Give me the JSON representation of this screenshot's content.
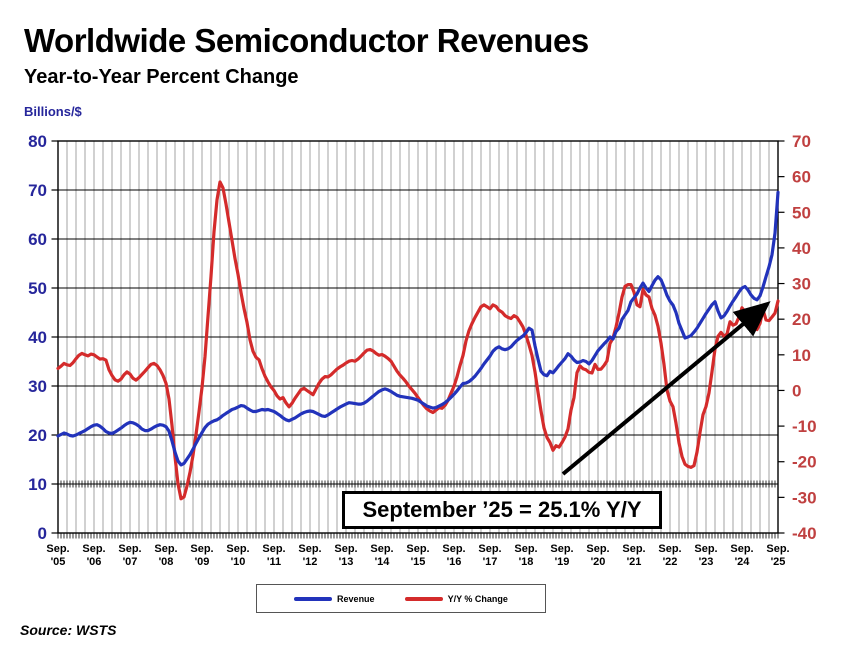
{
  "header": {
    "title": "Worldwide Semiconductor Revenues",
    "subtitle": "Year-to-Year Percent Change"
  },
  "source_label": "Source: WSTS",
  "annotation": {
    "text": "September ’25 = 25.1% Y/Y"
  },
  "legend": {
    "items": [
      {
        "label": "Revenue",
        "color": "#2233BB"
      },
      {
        "label": "Y/Y % Change",
        "color": "#D42B2B"
      }
    ]
  },
  "colors": {
    "revenue_line": "#2233BB",
    "yoy_line": "#D42B2B",
    "left_axis_text": "#26269B",
    "right_axis_text": "#C04040",
    "x_axis_text": "#000000",
    "grid_vertical": "#A3A3A3",
    "grid_horizontal": "#000000",
    "arrow": "#000000"
  },
  "chart_data": {
    "type": "line",
    "title": "Worldwide Semiconductor Revenues",
    "subtitle": "Year-to-Year Percent Change",
    "x_frequency": "monthly",
    "x_start": "Sep 2005",
    "x_end": "Sep 2025",
    "x_tick_month": "Sep.",
    "x_tick_years": [
      "'05",
      "'06",
      "'07",
      "'08",
      "'09",
      "'10",
      "'11",
      "'12",
      "'13",
      "'14",
      "'15",
      "'16",
      "'17",
      "'18",
      "'19",
      "'20",
      "'21",
      "'22",
      "'23",
      "'24",
      "'25"
    ],
    "axes": {
      "left": {
        "title": "Billions/$",
        "min": 0,
        "max": 80,
        "tick_step": 10
      },
      "right": {
        "title": "Y/Y % Change",
        "min": -40,
        "max": 70,
        "tick_step": 10
      }
    },
    "grid": {
      "vertical": "quarterly",
      "horizontal": "every 10 on left axis"
    },
    "legend_position": "bottom-center",
    "annotation": "September ’25 = 25.1% Y/Y",
    "series": [
      {
        "name": "Revenue",
        "axis": "left",
        "color": "#2233BB",
        "values": [
          19.8,
          20.1,
          20.4,
          20.2,
          19.9,
          19.8,
          20.0,
          20.3,
          20.6,
          20.9,
          21.3,
          21.7,
          22.0,
          22.1,
          21.8,
          21.3,
          20.7,
          20.4,
          20.3,
          20.6,
          21.0,
          21.4,
          21.9,
          22.3,
          22.6,
          22.5,
          22.2,
          21.8,
          21.2,
          20.9,
          20.9,
          21.2,
          21.6,
          21.9,
          22.1,
          22.0,
          21.7,
          20.8,
          18.8,
          16.5,
          14.7,
          13.9,
          14.2,
          15.1,
          16.0,
          17.1,
          18.3,
          19.4,
          20.5,
          21.5,
          22.2,
          22.6,
          22.9,
          23.1,
          23.5,
          24.0,
          24.4,
          24.8,
          25.2,
          25.4,
          25.7,
          26.0,
          25.9,
          25.5,
          25.1,
          24.8,
          24.8,
          25.0,
          25.2,
          25.1,
          25.2,
          25.0,
          24.8,
          24.4,
          24.0,
          23.5,
          23.1,
          22.9,
          23.2,
          23.5,
          23.9,
          24.3,
          24.6,
          24.8,
          24.9,
          24.8,
          24.5,
          24.2,
          23.9,
          23.8,
          24.1,
          24.5,
          24.9,
          25.3,
          25.7,
          26.0,
          26.3,
          26.6,
          26.5,
          26.4,
          26.3,
          26.3,
          26.5,
          26.9,
          27.4,
          27.9,
          28.4,
          28.9,
          29.2,
          29.4,
          29.2,
          28.9,
          28.5,
          28.1,
          27.9,
          27.8,
          27.7,
          27.6,
          27.5,
          27.3,
          27.1,
          26.7,
          26.3,
          25.9,
          25.7,
          25.5,
          25.6,
          25.9,
          26.2,
          26.6,
          27.1,
          27.7,
          28.3,
          29.0,
          29.8,
          30.5,
          30.6,
          30.9,
          31.4,
          32.0,
          32.8,
          33.6,
          34.5,
          35.3,
          36.1,
          37.1,
          37.7,
          38.0,
          37.6,
          37.4,
          37.6,
          38.0,
          38.7,
          39.3,
          39.8,
          40.2,
          40.9,
          41.8,
          41.4,
          38.2,
          35.5,
          33.0,
          32.3,
          32.1,
          33.0,
          32.7,
          33.4,
          34.2,
          34.9,
          35.6,
          36.6,
          36.1,
          35.3,
          34.8,
          34.9,
          35.2,
          35.0,
          34.5,
          35.2,
          36.2,
          37.2,
          37.9,
          38.6,
          39.2,
          40.0,
          39.6,
          41.1,
          41.8,
          43.6,
          44.5,
          45.4,
          47.2,
          48.0,
          48.8,
          50.0,
          51.0,
          50.0,
          49.3,
          50.5,
          51.6,
          52.3,
          51.7,
          50.2,
          48.5,
          47.3,
          46.5,
          45.0,
          42.8,
          41.3,
          39.8,
          40.0,
          40.3,
          41.0,
          41.8,
          42.8,
          43.8,
          44.8,
          45.7,
          46.6,
          47.2,
          45.3,
          43.9,
          44.3,
          45.2,
          46.3,
          47.3,
          48.2,
          49.2,
          50.0,
          50.3,
          49.6,
          48.6,
          47.9,
          47.6,
          48.4,
          50.2,
          52.3,
          54.3,
          56.8,
          61.2,
          69.5
        ]
      },
      {
        "name": "Y/Y % Change",
        "axis": "right",
        "color": "#D42B2B",
        "values": [
          6.2,
          6.8,
          7.6,
          7.2,
          7.0,
          7.8,
          8.9,
          9.9,
          10.4,
          10.0,
          9.7,
          10.2,
          10.0,
          9.4,
          8.8,
          8.9,
          8.5,
          5.8,
          4.2,
          3.0,
          2.6,
          3.2,
          4.4,
          5.2,
          4.6,
          3.4,
          2.9,
          3.6,
          4.5,
          5.4,
          6.4,
          7.3,
          7.6,
          7.0,
          5.8,
          4.2,
          2.0,
          -2.4,
          -9.8,
          -18.6,
          -26.2,
          -30.4,
          -29.9,
          -26.8,
          -23.0,
          -18.2,
          -12.4,
          -6.0,
          0.8,
          9.5,
          20.8,
          32.0,
          44.5,
          53.5,
          58.5,
          56.8,
          52.3,
          47.2,
          42.1,
          37.0,
          32.6,
          27.5,
          23.0,
          19.1,
          14.2,
          11.0,
          9.3,
          8.6,
          6.1,
          4.0,
          2.4,
          1.0,
          0.0,
          -1.5,
          -2.4,
          -2.0,
          -3.5,
          -4.6,
          -3.6,
          -2.2,
          -1.0,
          0.2,
          0.6,
          0.0,
          -0.6,
          -1.2,
          0.4,
          2.0,
          3.2,
          3.9,
          3.8,
          4.4,
          5.2,
          6.0,
          6.6,
          7.1,
          7.7,
          8.2,
          8.4,
          8.2,
          8.8,
          9.6,
          10.5,
          11.3,
          11.5,
          11.1,
          10.4,
          9.9,
          10.1,
          9.6,
          9.0,
          8.2,
          6.8,
          5.4,
          4.3,
          3.4,
          2.4,
          1.2,
          0.2,
          -0.8,
          -2.0,
          -3.2,
          -4.3,
          -5.2,
          -5.8,
          -6.2,
          -5.5,
          -4.8,
          -5.0,
          -4.2,
          -2.8,
          -0.8,
          1.2,
          3.8,
          7.0,
          9.8,
          13.9,
          16.8,
          18.8,
          20.5,
          22.0,
          23.5,
          24.0,
          23.5,
          22.9,
          24.0,
          23.6,
          22.5,
          22.0,
          21.0,
          20.5,
          20.2,
          21.0,
          20.5,
          19.2,
          17.8,
          15.5,
          12.8,
          9.8,
          5.2,
          -0.5,
          -5.8,
          -10.5,
          -13.2,
          -14.6,
          -16.8,
          -15.5,
          -15.9,
          -14.6,
          -13.1,
          -10.8,
          -5.5,
          -2.0,
          5.0,
          6.9,
          6.1,
          5.8,
          5.1,
          4.9,
          7.3,
          5.9,
          6.0,
          7.0,
          8.3,
          13.2,
          14.7,
          17.8,
          21.7,
          26.2,
          29.2,
          29.7,
          29.7,
          27.6,
          24.0,
          23.5,
          28.3,
          26.8,
          26.2,
          23.0,
          21.1,
          18.0,
          13.3,
          7.3,
          0.1,
          -3.0,
          -4.6,
          -9.2,
          -14.7,
          -18.5,
          -20.7,
          -21.3,
          -21.6,
          -21.1,
          -17.3,
          -11.8,
          -6.8,
          -4.5,
          -0.7,
          5.3,
          11.6,
          15.2,
          16.3,
          15.2,
          15.8,
          19.3,
          18.3,
          18.7,
          20.6,
          23.2,
          22.1,
          20.7,
          17.1,
          17.9,
          17.1,
          18.8,
          22.7,
          19.8,
          19.6,
          20.6,
          21.7,
          25.1
        ]
      }
    ]
  }
}
